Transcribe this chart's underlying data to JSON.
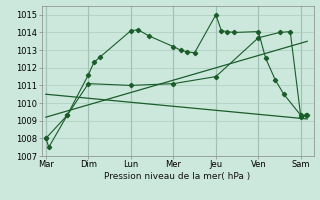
{
  "xlabel": "Pression niveau de la mer( hPa )",
  "bg_color": "#cce8dc",
  "grid_color": "#aaccbb",
  "line_color": "#1a5c2a",
  "ylim": [
    1007,
    1015.5
  ],
  "xlim": [
    -0.1,
    6.3
  ],
  "xticks": [
    0,
    1,
    2,
    3,
    4,
    5,
    6
  ],
  "xticklabels": [
    "Mar",
    "Dim",
    "Lun",
    "Mer",
    "Jeu",
    "Ven",
    "Sam"
  ],
  "yticks": [
    1007,
    1008,
    1009,
    1010,
    1011,
    1012,
    1013,
    1014,
    1015
  ],
  "jagged_x": [
    0,
    0.07,
    0.5,
    1.0,
    1.13,
    1.27,
    2.0,
    2.17,
    2.43,
    3.0,
    3.17,
    3.33,
    3.5,
    4.0,
    4.13,
    4.27,
    4.43,
    5.0,
    5.17,
    5.4,
    5.6,
    6.0,
    6.13
  ],
  "jagged_y": [
    1008.0,
    1007.5,
    1009.3,
    1011.6,
    1012.3,
    1012.6,
    1014.1,
    1014.15,
    1013.8,
    1013.2,
    1013.0,
    1012.9,
    1012.85,
    1015.0,
    1014.1,
    1014.05,
    1014.0,
    1014.05,
    1012.55,
    1011.3,
    1010.5,
    1009.3,
    1009.3
  ],
  "smooth_x": [
    0,
    0.5,
    1.0,
    2.0,
    3.0,
    4.0,
    5.0,
    5.5,
    5.75,
    6.0,
    6.15
  ],
  "smooth_y": [
    1008.0,
    1009.3,
    1011.1,
    1011.0,
    1011.1,
    1011.5,
    1013.7,
    1014.0,
    1014.05,
    1009.2,
    1009.3
  ],
  "trend1_x": [
    0,
    6.15
  ],
  "trend1_y": [
    1009.2,
    1013.5
  ],
  "trend2_x": [
    0,
    6.15
  ],
  "trend2_y": [
    1010.5,
    1009.1
  ]
}
